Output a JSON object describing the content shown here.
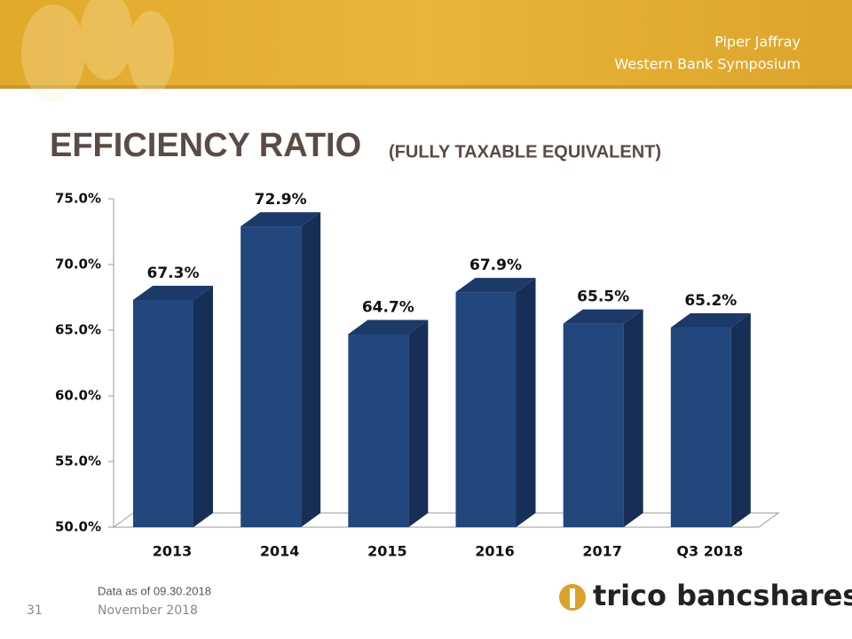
{
  "header": {
    "line1": "Piper Jaffray",
    "line2": "Western Bank Symposium"
  },
  "chart_data": {
    "type": "bar3d",
    "title": "EFFICIENCY RATIO",
    "subtitle": "(FULLY TAXABLE EQUIVALENT)",
    "categories": [
      "2013",
      "2014",
      "2015",
      "2016",
      "2017",
      "Q3 2018"
    ],
    "values": [
      67.3,
      72.9,
      64.7,
      67.9,
      65.5,
      65.2
    ],
    "value_labels": [
      "67.3%",
      "72.9%",
      "64.7%",
      "67.9%",
      "65.5%",
      "65.2%"
    ],
    "color": "#22477d",
    "ylim": [
      50,
      75
    ],
    "yticks": [
      {
        "value": 50,
        "label": "50.0%"
      },
      {
        "value": 55,
        "label": "55.0%"
      },
      {
        "value": 60,
        "label": "60.0%"
      },
      {
        "value": 65,
        "label": "65.0%"
      },
      {
        "value": 70,
        "label": "70.0%"
      },
      {
        "value": 75,
        "label": "75.0%"
      }
    ]
  },
  "footer": {
    "note": "Data as of 09.30.2018",
    "page": "31",
    "date": "November 2018",
    "logo": "trico bancshares"
  }
}
